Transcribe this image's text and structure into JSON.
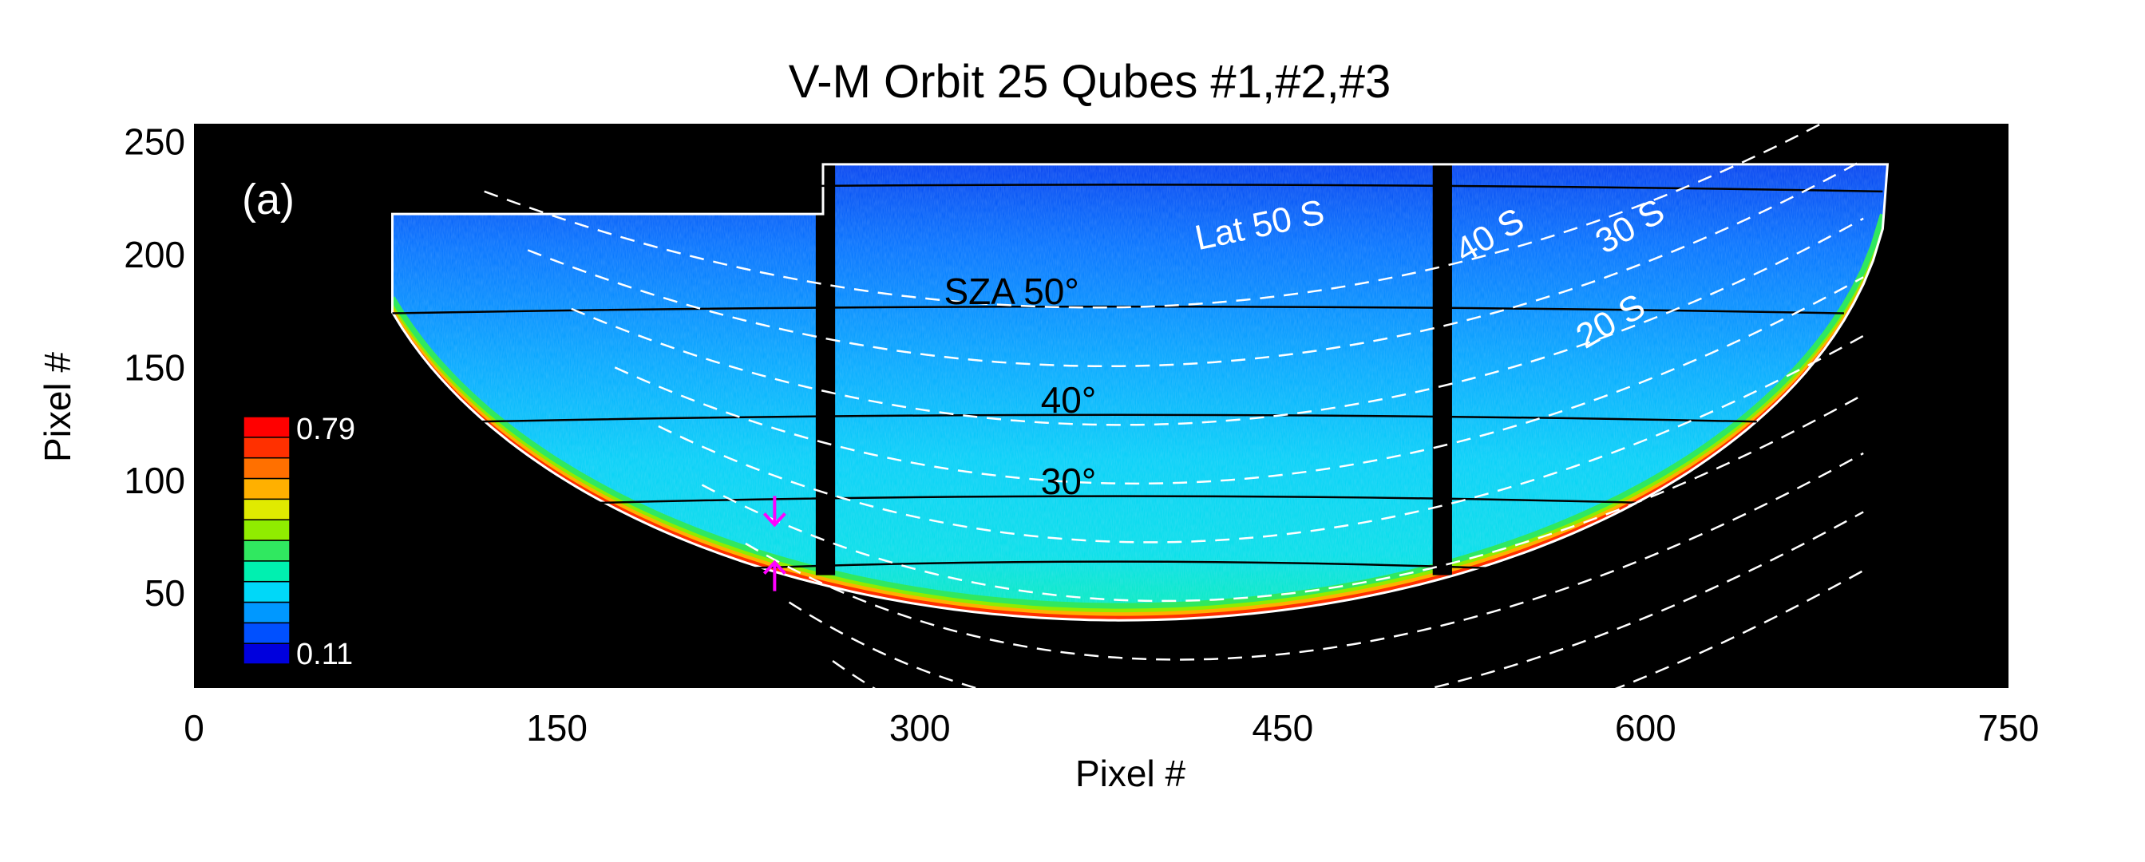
{
  "chart_data": {
    "type": "heatmap",
    "title": "V-M   Orbit 25   Qubes #1,#2,#3",
    "panel_label": "(a)",
    "xlabel": "Pixel #",
    "ylabel": "Pixel #",
    "xlim": [
      0,
      750
    ],
    "ylim": [
      8,
      258
    ],
    "x_ticks": [
      0,
      150,
      300,
      450,
      600,
      750
    ],
    "y_ticks": [
      50,
      100,
      150,
      200,
      250
    ],
    "grid": false,
    "background_color": "#000000",
    "colorbar": {
      "min_label": "0.11",
      "max_label": "0.79",
      "min": 0.11,
      "max": 0.79,
      "colors": [
        "#0000dd",
        "#0050ff",
        "#0098ff",
        "#00d8f8",
        "#00f0b0",
        "#30e860",
        "#90ec00",
        "#e0ea00",
        "#ffb000",
        "#ff7000",
        "#ff3000",
        "#ff0000"
      ]
    },
    "qube_gaps_x": [
      [
        257,
        265
      ],
      [
        512,
        520
      ]
    ],
    "sza_contours": [
      {
        "label": "SZA 50°",
        "y": 178
      },
      {
        "label": "40°",
        "y": 130
      },
      {
        "label": "30°",
        "y": 94
      },
      {
        "label": "",
        "y": 65
      },
      {
        "label": "",
        "y": 232
      }
    ],
    "latitude_labels": [
      {
        "label": "Lat 50 S"
      },
      {
        "label": "40 S"
      },
      {
        "label": "30 S"
      },
      {
        "label": "20 S"
      }
    ],
    "markers": [
      {
        "type": "arrow-down",
        "x": 240,
        "y": 86,
        "color": "#ff00ff"
      },
      {
        "type": "arrow-up",
        "x": 240,
        "y": 58,
        "color": "#ff00ff"
      }
    ]
  }
}
